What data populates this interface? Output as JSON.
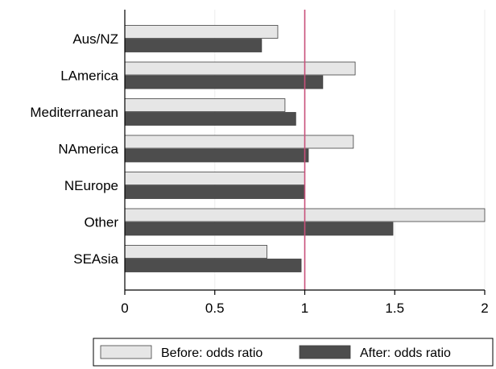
{
  "chart_data": {
    "type": "bar",
    "orientation": "horizontal",
    "categories": [
      "Aus/NZ",
      "LAmerica",
      "Mediterranean",
      "NAmerica",
      "NEurope",
      "Other",
      "SEAsia"
    ],
    "series": [
      {
        "name": "Before: odds ratio",
        "color": "#e6e6e6",
        "values": [
          0.85,
          1.28,
          0.89,
          1.27,
          1.0,
          2.0,
          0.79
        ]
      },
      {
        "name": "After: odds ratio",
        "color": "#4d4d4d",
        "values": [
          0.76,
          1.1,
          0.95,
          1.02,
          1.0,
          1.49,
          0.98
        ]
      }
    ],
    "xlim": [
      0,
      2
    ],
    "xticks": [
      "0",
      "0.5",
      "1",
      "1.5",
      "2"
    ],
    "reference_line": {
      "value": 1,
      "color": "#c8507a"
    },
    "grid": "vertical",
    "legend_position": "bottom",
    "title": "",
    "xlabel": "",
    "ylabel": ""
  }
}
